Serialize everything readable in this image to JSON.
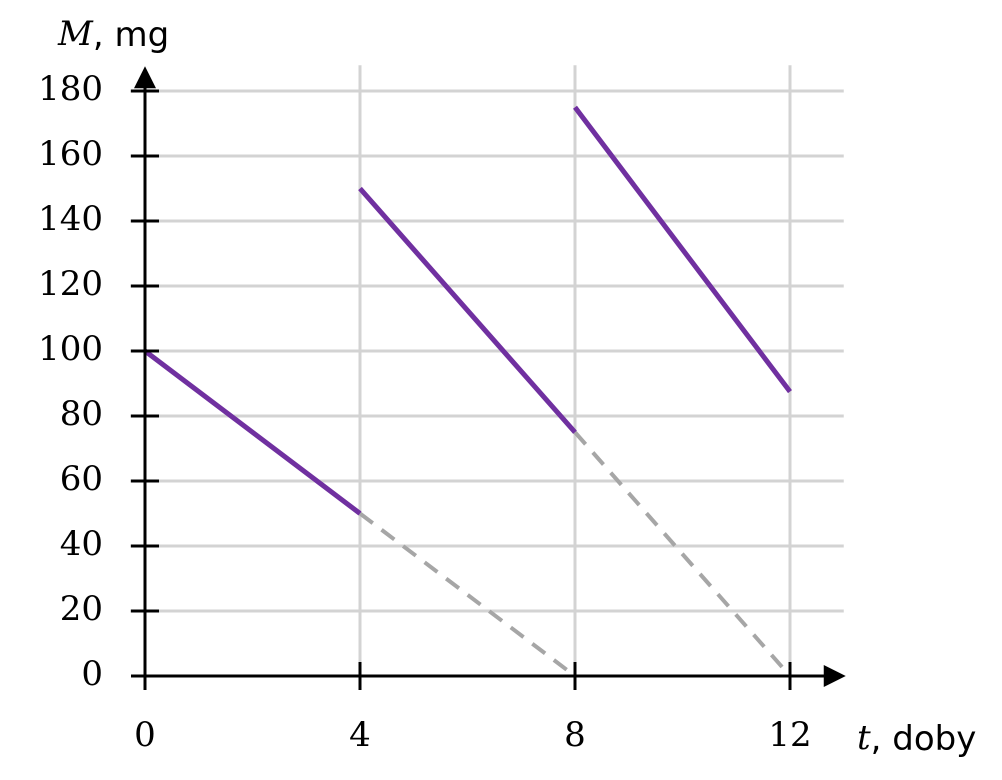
{
  "chart_data": {
    "type": "line",
    "xlabel": [
      "t",
      ", doby"
    ],
    "ylabel": [
      "M",
      ", mg"
    ],
    "xlim": [
      0,
      13
    ],
    "ylim": [
      0,
      187
    ],
    "xticks": [
      0,
      4,
      8,
      12
    ],
    "yticks": [
      0,
      20,
      40,
      60,
      80,
      100,
      120,
      140,
      160,
      180
    ],
    "grid": true,
    "series": [
      {
        "color": "#7030a0",
        "style": "solid",
        "x": [
          0,
          4,
          null,
          4,
          8,
          null,
          8,
          12
        ],
        "values": [
          100,
          50,
          null,
          150,
          75,
          null,
          175,
          87.5
        ]
      },
      {
        "color": "#a6a6a6",
        "style": "dashed",
        "x": [
          4,
          8,
          null,
          8,
          12
        ],
        "values": [
          50,
          0,
          null,
          75,
          0
        ]
      }
    ]
  }
}
